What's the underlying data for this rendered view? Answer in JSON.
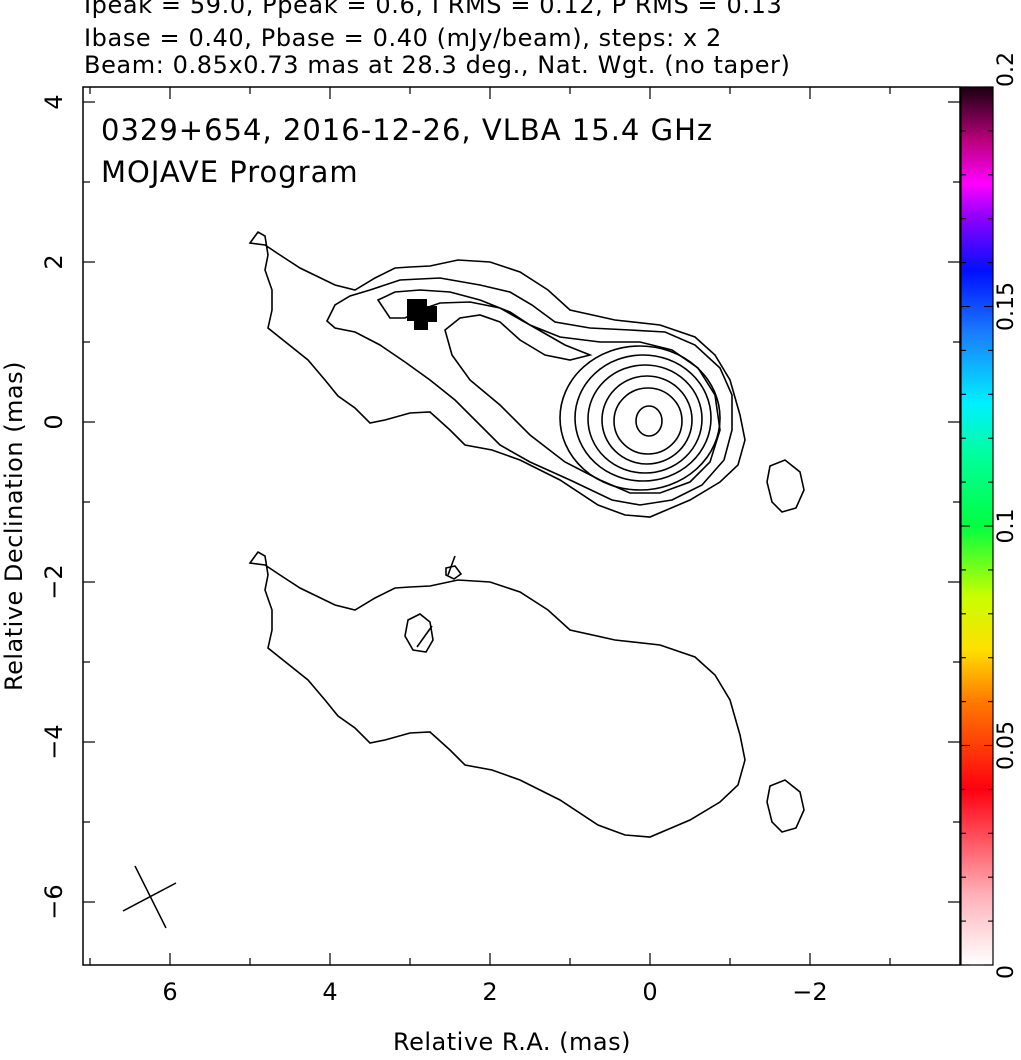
{
  "header": {
    "line1": "Ipeak = 59.0, Ppeak = 0.6, I RMS = 0.12, P RMS = 0.13",
    "line2": "Ibase = 0.40, Pbase = 0.40 (mJy/beam), steps: x 2",
    "line3": "Beam: 0.85x0.73 mas at 28.3 deg., Nat. Wgt. (no taper)"
  },
  "chart_data": {
    "type": "contour",
    "title": "0329+654, 2016-12-26, VLBA 15.4 GHz",
    "subtitle": "MOJAVE Program",
    "xlabel": "Relative R.A. (mas)",
    "ylabel": "Relative Declination (mas)",
    "xlim": [
      7.1,
      -3.9
    ],
    "ylim": [
      -6.8,
      4.2
    ],
    "x_ticks": [
      6,
      4,
      2,
      0,
      -2
    ],
    "x_tick_labels": [
      "6",
      "4",
      "2",
      "0",
      "−2"
    ],
    "y_ticks": [
      4,
      2,
      0,
      -2,
      -4,
      -6
    ],
    "y_tick_labels": [
      "4",
      "2",
      "0",
      "−2",
      "−4",
      "−6"
    ],
    "colorbar": {
      "range": [
        0,
        0.2
      ],
      "ticks": [
        0,
        0.05,
        0.1,
        0.15,
        0.2
      ],
      "tick_labels": [
        "0",
        "0.05",
        "0.1",
        "0.15",
        "0.2"
      ]
    },
    "intensity_contours": {
      "peak_position": [
        0,
        0
      ],
      "base_level_mJy_per_beam": 0.4,
      "step_factor": 2
    },
    "polarization_map": {
      "contours": "single base contour (same outline as outer Stokes I)",
      "offset_dec": -4.0
    },
    "polarized_pixel": {
      "x": 2.85,
      "y": 1.35
    },
    "beam": {
      "major_mas": 0.85,
      "minor_mas": 0.73,
      "pa_deg": 28.3,
      "center": [
        6.2,
        -6.0
      ]
    }
  }
}
